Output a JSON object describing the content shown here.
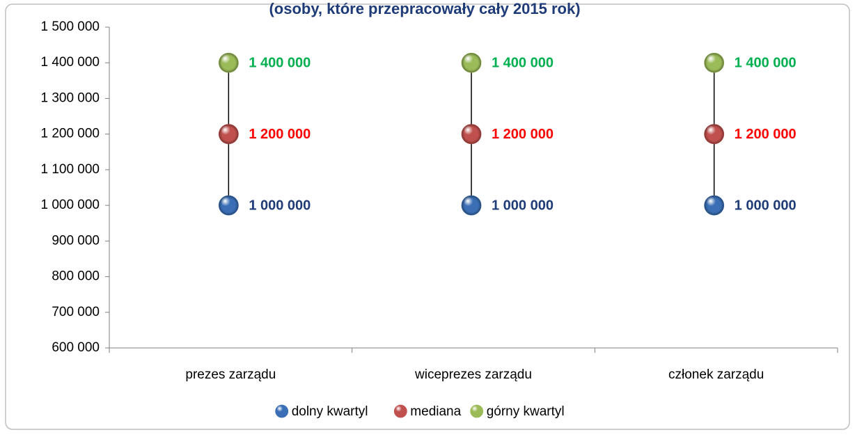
{
  "chart_data": {
    "type": "scatter",
    "title": "(osoby, które przepracowały cały 2015 rok)",
    "categories": [
      "prezes zarządu",
      "wiceprezes zarządu",
      "członek zarządu"
    ],
    "series": [
      {
        "name": "dolny kwartyl",
        "values": [
          1000000,
          1000000,
          1000000
        ],
        "labels": [
          "1 000 000",
          "1 000 000",
          "1 000 000"
        ],
        "color": "#3a6fb5",
        "label_color": "#1f3c78"
      },
      {
        "name": "mediana",
        "values": [
          1200000,
          1200000,
          1200000
        ],
        "labels": [
          "1 200 000",
          "1 200 000",
          "1 200 000"
        ],
        "color": "#c0504d",
        "label_color": "#ff0000"
      },
      {
        "name": "górny kwartyl",
        "values": [
          1400000,
          1400000,
          1400000
        ],
        "labels": [
          "1 400 000",
          "1 400 000",
          "1 400 000"
        ],
        "color": "#9bbb59",
        "label_color": "#00b050"
      }
    ],
    "ylim": [
      600000,
      1500000
    ],
    "yticks": [
      600000,
      700000,
      800000,
      900000,
      1000000,
      1100000,
      1200000,
      1300000,
      1400000,
      1500000
    ],
    "ytick_labels": [
      "600 000",
      "700 000",
      "800 000",
      "900 000",
      "1 000 000",
      "1 100 000",
      "1 200 000",
      "1 300 000",
      "1 400 000",
      "1 500 000"
    ],
    "xlabel": "",
    "ylabel": "",
    "grid": false,
    "legend": "bottom",
    "title_color": "#1f3c78"
  }
}
